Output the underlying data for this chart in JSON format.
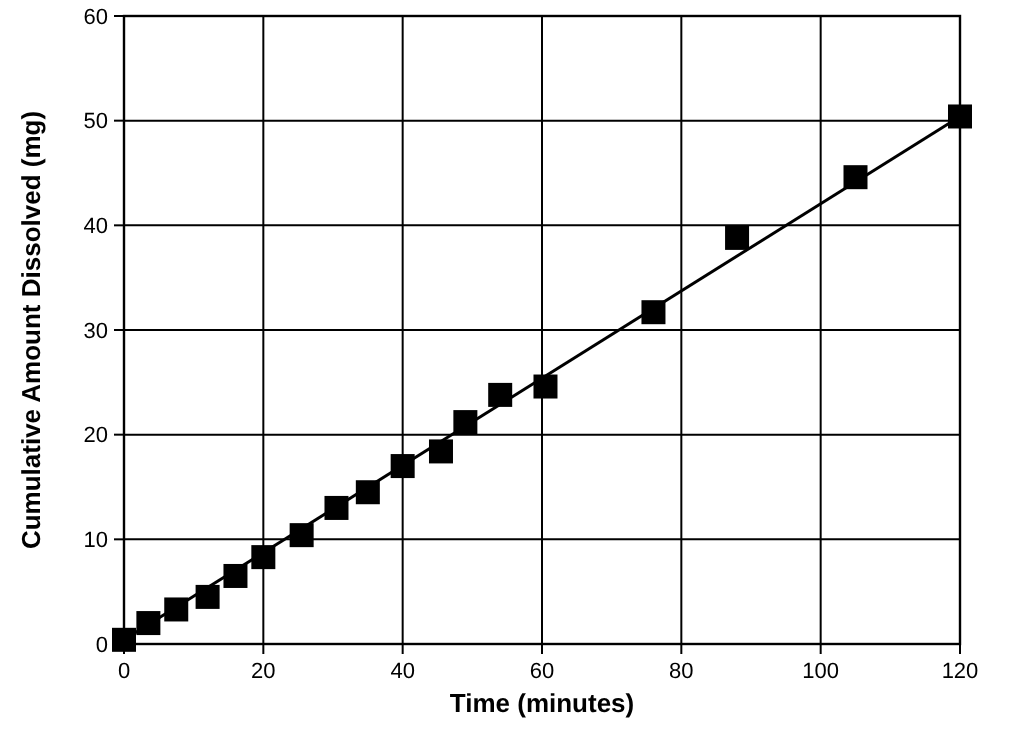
{
  "chart_data": {
    "type": "scatter",
    "xlabel": "Time (minutes)",
    "ylabel": "Cumulative Amount Dissolved (mg)",
    "xlim": [
      0,
      120
    ],
    "ylim": [
      0,
      60
    ],
    "xticks": [
      0,
      20,
      40,
      60,
      80,
      100,
      120
    ],
    "yticks": [
      0,
      10,
      20,
      30,
      40,
      50,
      60
    ],
    "grid": true,
    "marker": "square",
    "series": [
      {
        "color": "#000000",
        "x": [
          0,
          3.5,
          7.5,
          12,
          16,
          20,
          25.5,
          30.5,
          35,
          40,
          45.5,
          49,
          54,
          60.5,
          76,
          88,
          105,
          120
        ],
        "values": [
          0.4,
          2,
          3.3,
          4.5,
          6.5,
          8.3,
          10.4,
          13,
          14.5,
          17,
          18.4,
          21.2,
          23.8,
          24.6,
          31.7,
          38.8,
          44.6,
          50.4
        ]
      },
      {
        "type": "line",
        "color": "#000000",
        "x": [
          0,
          120
        ],
        "values": [
          0.4,
          50.4
        ],
        "marker": "none",
        "line_style": "solid"
      }
    ]
  }
}
